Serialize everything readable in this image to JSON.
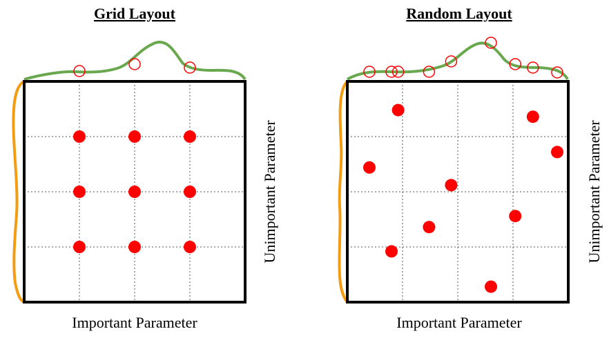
{
  "panels": [
    {
      "title": "Grid Layout",
      "xlabel": "Important Parameter",
      "ylabel": "Unimportant Parameter",
      "points": [
        [
          0.25,
          0.25
        ],
        [
          0.5,
          0.25
        ],
        [
          0.75,
          0.25
        ],
        [
          0.25,
          0.5
        ],
        [
          0.5,
          0.5
        ],
        [
          0.75,
          0.5
        ],
        [
          0.25,
          0.75
        ],
        [
          0.5,
          0.75
        ],
        [
          0.75,
          0.75
        ]
      ],
      "top_curve_markers": [
        0.25,
        0.5,
        0.75
      ]
    },
    {
      "title": "Random Layout",
      "xlabel": "Important Parameter",
      "ylabel": "Unimportant Parameter",
      "points": [
        [
          0.23,
          0.87
        ],
        [
          0.84,
          0.84
        ],
        [
          0.95,
          0.68
        ],
        [
          0.1,
          0.61
        ],
        [
          0.47,
          0.53
        ],
        [
          0.76,
          0.39
        ],
        [
          0.37,
          0.34
        ],
        [
          0.2,
          0.23
        ],
        [
          0.65,
          0.07
        ]
      ],
      "top_curve_markers": [
        0.1,
        0.2,
        0.23,
        0.37,
        0.47,
        0.65,
        0.76,
        0.84,
        0.95
      ]
    }
  ],
  "colors": {
    "point": "#ff0000",
    "top_curve": "#6aa84f",
    "side_curve": "#f39c12",
    "frame": "#000000",
    "grid": "#555555"
  }
}
